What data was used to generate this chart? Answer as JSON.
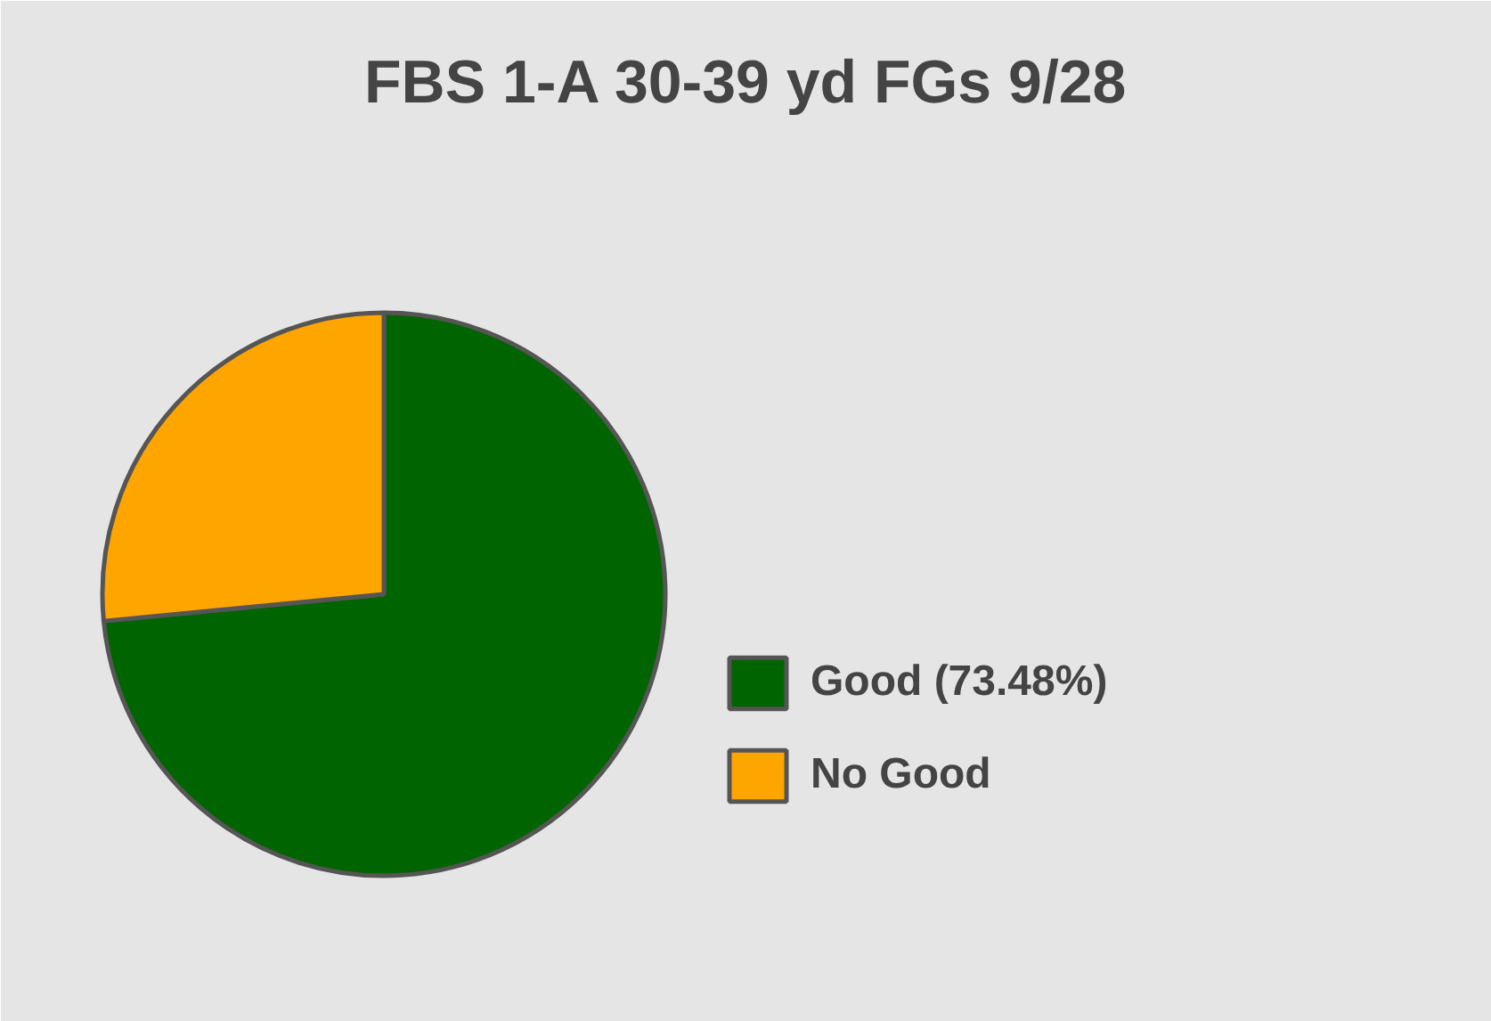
{
  "chart_data": {
    "type": "pie",
    "title": "FBS 1-A 30-39 yd FGs 9/28",
    "categories": [
      "Good (73.48%)",
      "No Good"
    ],
    "values": [
      73.48,
      26.52
    ],
    "colors": [
      "#006400",
      "#ffa500"
    ],
    "legend": "right"
  }
}
